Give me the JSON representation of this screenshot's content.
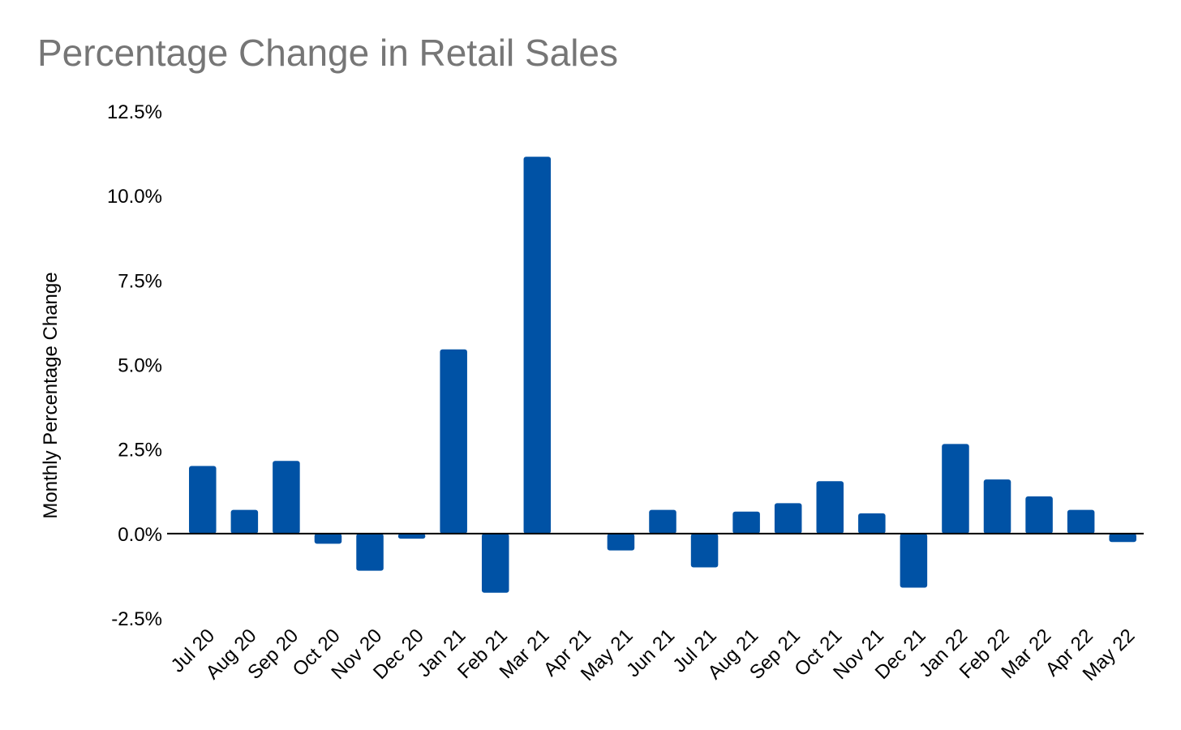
{
  "chart_data": {
    "type": "bar",
    "title": "Percentage Change in Retail Sales",
    "xlabel": "",
    "ylabel": "Monthly Percentage Change",
    "ylim": [
      -2.5,
      12.5
    ],
    "yticks": [
      -2.5,
      0.0,
      2.5,
      5.0,
      7.5,
      10.0,
      12.5
    ],
    "ytick_labels": [
      "-2.5%",
      "0.0%",
      "2.5%",
      "5.0%",
      "7.5%",
      "10.0%",
      "12.5%"
    ],
    "grid": false,
    "bar_color": "#0052a5",
    "categories": [
      "Jul 20",
      "Aug 20",
      "Sep 20",
      "Oct 20",
      "Nov 20",
      "Dec 20",
      "Jan 21",
      "Feb 21",
      "Mar 21",
      "Apr 21",
      "May 21",
      "Jun 21",
      "Jul 21",
      "Aug 21",
      "Sep 21",
      "Oct 21",
      "Nov 21",
      "Dec 21",
      "Jan 22",
      "Feb 22",
      "Mar 22",
      "Apr 22",
      "May 22"
    ],
    "values": [
      2.0,
      0.7,
      2.15,
      -0.3,
      -1.1,
      -0.15,
      5.45,
      -1.75,
      11.15,
      0.0,
      -0.5,
      0.7,
      -1.0,
      0.65,
      0.9,
      1.55,
      0.6,
      -1.6,
      2.65,
      1.6,
      1.1,
      0.7,
      -0.25
    ]
  }
}
